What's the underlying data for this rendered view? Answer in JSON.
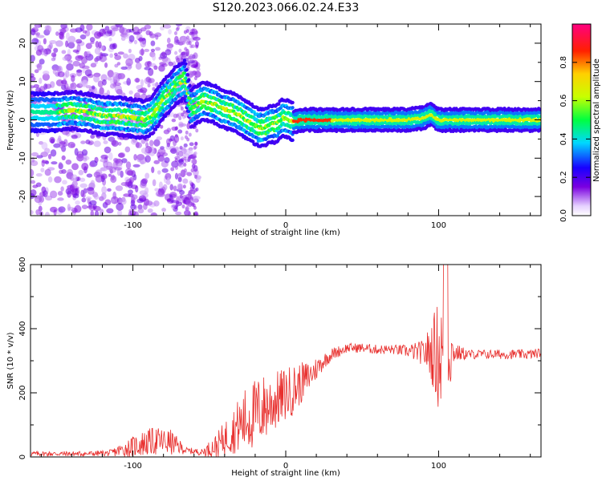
{
  "title": "S120.2023.066.02.24.E33",
  "colors": {
    "snr_line": "#e8302e",
    "spectrogram_colormap": "hsv-rainbow (violet to red)"
  },
  "chart_data": [
    {
      "type": "heatmap",
      "name": "spectrogram",
      "xlabel": "Height of straight line (km)",
      "ylabel": "Frequency (Hz)",
      "xlim": [
        -167,
        167
      ],
      "ylim": [
        -25,
        25
      ],
      "x_ticks": [
        -100,
        0,
        100
      ],
      "x_tick_labels": [
        "-100",
        "0",
        "100"
      ],
      "y_ticks": [
        -20,
        -10,
        0,
        10,
        20
      ],
      "y_tick_labels": [
        "-20",
        "-10",
        "0",
        "10",
        "20"
      ],
      "colorbar": {
        "label": "Normalized spectral amplitude",
        "range": [
          0,
          1
        ],
        "ticks": [
          0.0,
          0.2,
          0.4,
          0.6,
          0.8
        ],
        "tick_labels": [
          "0.0",
          "0.2",
          "0.4",
          "0.6",
          "0.8"
        ]
      },
      "ridge": {
        "x": [
          -165,
          -150,
          -140,
          -130,
          -120,
          -110,
          -100,
          -92,
          -88,
          -84,
          -80,
          -76,
          -72,
          -66,
          -62,
          -58,
          -54,
          -50,
          -46,
          -42,
          -38,
          -34,
          -30,
          -26,
          -22,
          -18,
          -14,
          -10,
          -6,
          -2,
          2,
          6,
          10,
          20,
          40,
          60,
          80,
          90,
          95,
          100,
          120,
          140,
          167
        ],
        "freq": [
          2,
          2,
          2.5,
          2,
          1,
          1,
          0.5,
          0,
          1,
          3,
          5.5,
          7,
          9,
          10.5,
          3,
          4,
          5,
          4.5,
          4,
          3,
          2.5,
          2,
          1,
          0,
          -1,
          -2,
          -2,
          -1,
          -1,
          0.5,
          0,
          -0.5,
          0,
          0,
          0,
          0,
          0,
          0.5,
          1.5,
          0,
          0,
          0,
          0
        ]
      }
    },
    {
      "type": "line",
      "name": "snr",
      "xlabel": "Height of straight line (km)",
      "ylabel": "SNR (10 * v/v)",
      "xlim": [
        -167,
        167
      ],
      "ylim": [
        0,
        600
      ],
      "x_ticks": [
        -100,
        0,
        100
      ],
      "x_tick_labels": [
        "-100",
        "0",
        "100"
      ],
      "y_ticks": [
        0,
        200,
        400,
        600
      ],
      "y_tick_labels": [
        "0",
        "200",
        "400",
        "600"
      ],
      "envelope": {
        "x": [
          -167,
          -150,
          -130,
          -115,
          -105,
          -95,
          -85,
          -75,
          -65,
          -55,
          -45,
          -35,
          -25,
          -15,
          -5,
          5,
          15,
          25,
          30,
          40,
          50,
          60,
          70,
          80,
          90,
          95,
          100,
          105,
          110,
          120,
          140,
          160,
          167
        ],
        "baseline": [
          10,
          10,
          10,
          12,
          25,
          40,
          50,
          45,
          20,
          15,
          35,
          80,
          120,
          150,
          180,
          210,
          250,
          300,
          320,
          340,
          340,
          335,
          335,
          330,
          325,
          330,
          320,
          320,
          325,
          320,
          320,
          320,
          325
        ],
        "noise": [
          8,
          8,
          8,
          10,
          25,
          40,
          45,
          40,
          10,
          10,
          40,
          70,
          110,
          110,
          90,
          80,
          50,
          25,
          20,
          15,
          15,
          15,
          15,
          20,
          40,
          90,
          180,
          200,
          30,
          15,
          15,
          15,
          15
        ]
      }
    }
  ],
  "labels": {
    "top_xlabel": "Height of straight line (km)",
    "top_ylabel": "Frequency (Hz)",
    "cbar_label": "Normalized spectral amplitude",
    "bottom_xlabel": "Height of straight line (km)",
    "bottom_ylabel": "SNR (10 * v/v)"
  }
}
